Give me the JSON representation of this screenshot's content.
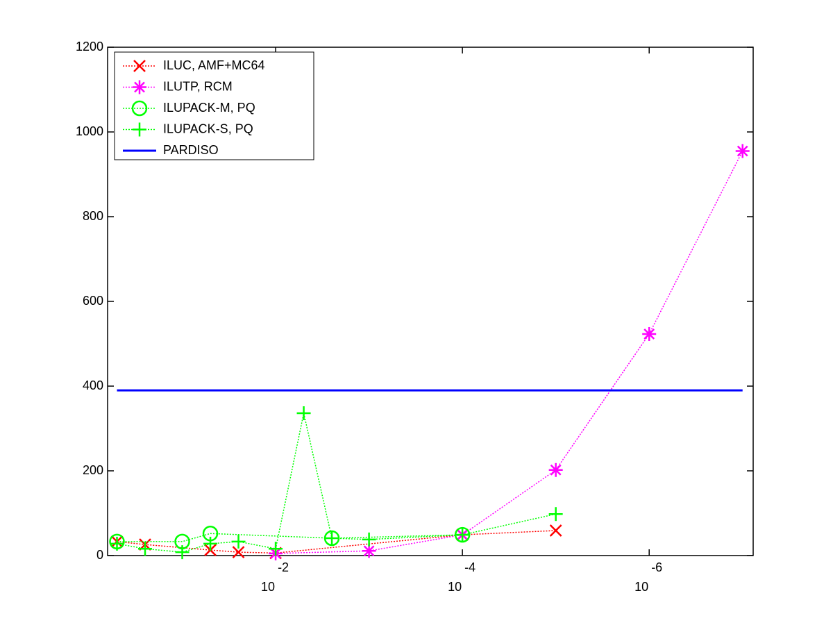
{
  "chart_data": {
    "type": "line",
    "xlog": true,
    "xlim": [
      0.63,
      7.7e-08
    ],
    "ylim": [
      0,
      1200
    ],
    "xticks": [
      {
        "value": 0.01,
        "label": "10",
        "exponent": "-2"
      },
      {
        "value": 0.0001,
        "label": "10",
        "exponent": "-4"
      },
      {
        "value": 1e-06,
        "label": "10",
        "exponent": "-6"
      }
    ],
    "yticks": [
      0,
      200,
      400,
      600,
      800,
      1000,
      1200
    ],
    "legend": "upper-left",
    "series": [
      {
        "name": "ILUC, AMF+MC64",
        "color": "#ff0000",
        "marker": "x",
        "linestyle": "dotted",
        "x": [
          0.5,
          0.25,
          0.05,
          0.025,
          0.01,
          0.0001,
          1e-05
        ],
        "values": [
          33,
          26,
          13,
          8,
          6,
          49,
          59
        ]
      },
      {
        "name": "ILUTP, RCM",
        "color": "#ff00ff",
        "marker": "asterisk",
        "linestyle": "dotted",
        "x": [
          0.01,
          0.001,
          0.0001,
          1e-05,
          1e-06,
          1e-07
        ],
        "values": [
          5,
          11,
          49,
          202,
          523,
          955
        ]
      },
      {
        "name": "ILUPACK-M, PQ",
        "color": "#00ff00",
        "marker": "circle",
        "linestyle": "dotted",
        "x": [
          0.5,
          0.1,
          0.05,
          0.0025,
          0.0001
        ],
        "values": [
          33,
          33,
          52,
          41,
          49
        ]
      },
      {
        "name": "ILUPACK-S, PQ",
        "color": "#00ff00",
        "marker": "plus",
        "linestyle": "dotted",
        "x": [
          0.5,
          0.25,
          0.1,
          0.05,
          0.025,
          0.01,
          0.005,
          0.0025,
          0.001,
          0.0001,
          1e-05
        ],
        "values": [
          28,
          16,
          8,
          28,
          33,
          16,
          336,
          41,
          38,
          49,
          98
        ]
      },
      {
        "name": "PARDISO",
        "color": "#0000ff",
        "marker": "none",
        "linestyle": "solid",
        "x": [
          0.5,
          1e-07
        ],
        "values": [
          390,
          390
        ]
      }
    ]
  }
}
